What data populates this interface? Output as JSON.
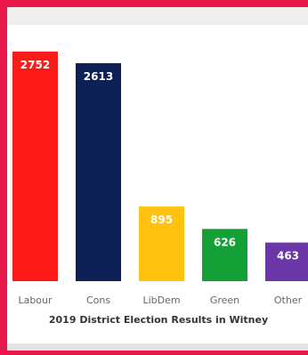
{
  "chart_data": {
    "type": "bar",
    "title": "2019 District Election Results in Witney",
    "categories": [
      "Labour",
      "Cons",
      "LibDem",
      "Green",
      "Other"
    ],
    "values": [
      2752,
      2613,
      895,
      626,
      463
    ],
    "colors": [
      "#ff1a1a",
      "#0e2157",
      "#ffc20e",
      "#12a037",
      "#6a36a8"
    ],
    "ylim": [
      0,
      2752
    ],
    "grid": false,
    "legend": "none"
  }
}
